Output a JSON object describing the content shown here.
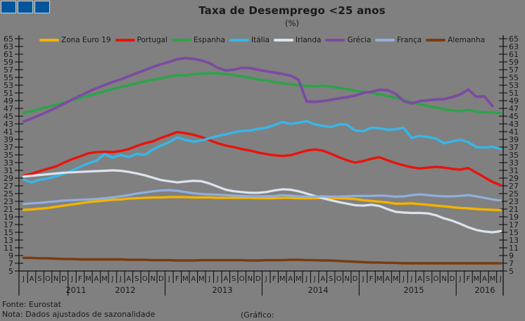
{
  "title": "Taxa de Desemprego <25 anos",
  "subtitle": "(%)",
  "footer": {
    "fonte": "Fonte: Eurostat",
    "nota": "Nota: Dados ajustados de sazonalidade",
    "grafico": "(Gráfico:"
  },
  "logo": {
    "color": "#01569B",
    "squares": 3
  },
  "colors": {
    "background": "#808080",
    "text": "#1a1a1a",
    "axis": "#111111"
  },
  "chart_data": {
    "type": "line",
    "title": "Taxa de Desemprego <25 anos",
    "subtitle": "(%)",
    "ylim": [
      5,
      65
    ],
    "ytick_step": 2,
    "grid": false,
    "legend_position": "top",
    "x_period": "Jul 2011 - Jun 2016, monthly",
    "x_months": [
      "J",
      "A",
      "S",
      "O",
      "N",
      "D",
      "J",
      "F",
      "M",
      "A",
      "M",
      "J",
      "J",
      "A",
      "S",
      "O",
      "N",
      "D",
      "J",
      "F",
      "M",
      "A",
      "M",
      "J",
      "J",
      "A",
      "S",
      "O",
      "N",
      "D",
      "J",
      "F",
      "M",
      "A",
      "M",
      "J",
      "J",
      "A",
      "S",
      "O",
      "N",
      "D",
      "J",
      "F",
      "M",
      "A",
      "M",
      "J",
      "J",
      "A",
      "S",
      "O",
      "N",
      "D",
      "J",
      "F",
      "M",
      "A",
      "M",
      "J"
    ],
    "x_years": [
      {
        "label": "2011",
        "months": 6
      },
      {
        "label": "2012",
        "months": 12
      },
      {
        "label": "2013",
        "months": 12
      },
      {
        "label": "2014",
        "months": 12
      },
      {
        "label": "2015",
        "months": 12
      },
      {
        "label": "2016",
        "months": 6
      }
    ],
    "series": [
      {
        "name": "Zona Euro 19",
        "color": "#F2B200",
        "width": 3.4,
        "values": [
          20.8,
          20.9,
          21.1,
          21.3,
          21.6,
          21.9,
          22.2,
          22.5,
          22.8,
          23.0,
          23.2,
          23.4,
          23.5,
          23.7,
          23.8,
          23.9,
          24.0,
          24.0,
          24.1,
          24.1,
          24.1,
          24.0,
          24.0,
          24.0,
          23.9,
          23.9,
          23.9,
          23.9,
          23.9,
          23.8,
          23.8,
          23.8,
          23.9,
          23.9,
          23.8,
          23.8,
          23.8,
          23.9,
          23.8,
          23.8,
          23.7,
          23.6,
          23.3,
          23.1,
          22.9,
          22.7,
          22.4,
          22.4,
          22.5,
          22.3,
          22.1,
          21.9,
          21.7,
          21.5,
          21.3,
          21.2,
          21.0,
          20.9,
          20.8,
          20.7
        ]
      },
      {
        "name": "Portugal",
        "color": "#E8130C",
        "width": 3.4,
        "values": [
          29.6,
          30.1,
          30.8,
          31.4,
          32.0,
          33.0,
          33.9,
          34.6,
          35.4,
          35.7,
          35.8,
          35.7,
          36.0,
          36.5,
          37.3,
          38.0,
          38.5,
          39.4,
          40.1,
          40.9,
          40.6,
          40.2,
          39.6,
          38.8,
          38.0,
          37.4,
          37.0,
          36.5,
          36.1,
          35.6,
          35.2,
          34.9,
          34.7,
          34.9,
          35.5,
          36.1,
          36.4,
          36.1,
          35.3,
          34.4,
          33.6,
          33.0,
          33.4,
          34.0,
          34.4,
          33.6,
          32.9,
          32.3,
          31.8,
          31.5,
          31.7,
          31.9,
          31.7,
          31.4,
          31.2,
          31.6,
          30.4,
          29.2,
          28.0,
          27.2
        ]
      },
      {
        "name": "Espanha",
        "color": "#2FA24A",
        "width": 3.6,
        "values": [
          45.9,
          46.3,
          46.8,
          47.4,
          48.0,
          48.5,
          49.1,
          49.7,
          50.3,
          50.8,
          51.4,
          52.0,
          52.5,
          53.0,
          53.5,
          54.0,
          54.4,
          54.8,
          55.2,
          55.6,
          55.5,
          55.8,
          56.0,
          56.1,
          56.1,
          55.9,
          55.6,
          55.3,
          54.9,
          54.5,
          54.2,
          53.8,
          53.5,
          53.2,
          53.0,
          52.8,
          52.7,
          52.9,
          52.6,
          52.3,
          52.0,
          51.6,
          51.3,
          51.0,
          50.6,
          50.2,
          49.8,
          49.2,
          48.6,
          48.1,
          47.6,
          47.2,
          46.8,
          46.5,
          46.3,
          46.6,
          46.2,
          46.0,
          45.9,
          45.8
        ]
      },
      {
        "name": "Itália",
        "color": "#38B6E8",
        "width": 3.4,
        "values": [
          28.6,
          27.9,
          28.6,
          28.9,
          29.5,
          30.1,
          31.0,
          31.9,
          32.8,
          33.5,
          35.2,
          34.3,
          35.0,
          34.4,
          35.3,
          35.0,
          36.4,
          37.4,
          38.3,
          39.5,
          38.9,
          38.4,
          38.7,
          39.3,
          39.9,
          40.3,
          40.8,
          41.2,
          41.3,
          41.7,
          42.0,
          42.7,
          43.5,
          43.0,
          43.3,
          43.7,
          42.9,
          42.5,
          42.2,
          42.9,
          42.8,
          41.3,
          41.1,
          42.0,
          41.9,
          41.5,
          41.6,
          42.0,
          39.4,
          39.9,
          39.6,
          39.2,
          38.0,
          38.5,
          38.9,
          38.3,
          37.0,
          36.9,
          37.1,
          36.5
        ]
      },
      {
        "name": "Irlanda",
        "color": "#DCE3EF",
        "width": 3.2,
        "values": [
          29.4,
          29.6,
          29.8,
          30.0,
          30.2,
          30.4,
          30.5,
          30.6,
          30.7,
          30.8,
          30.9,
          31.0,
          30.9,
          30.6,
          30.2,
          29.7,
          29.1,
          28.5,
          28.2,
          27.9,
          28.1,
          28.3,
          28.2,
          27.6,
          26.8,
          26.0,
          25.6,
          25.4,
          25.2,
          25.2,
          25.4,
          25.8,
          26.1,
          26.0,
          25.6,
          25.0,
          24.4,
          23.8,
          23.3,
          22.8,
          22.4,
          22.0,
          21.9,
          22.1,
          21.8,
          21.0,
          20.3,
          20.1,
          20.0,
          20.0,
          19.9,
          19.4,
          18.6,
          18.0,
          17.2,
          16.3,
          15.6,
          15.2,
          15.0,
          15.3
        ]
      },
      {
        "name": "Grécia",
        "color": "#7B4BA2",
        "width": 3.7,
        "values": [
          43.6,
          44.4,
          45.3,
          46.2,
          47.2,
          48.2,
          49.3,
          50.3,
          51.3,
          52.2,
          53.0,
          53.8,
          54.5,
          55.3,
          56.1,
          56.9,
          57.7,
          58.4,
          59.0,
          59.7,
          60.0,
          59.8,
          59.4,
          58.7,
          57.5,
          56.8,
          57.0,
          57.5,
          57.4,
          57.0,
          56.6,
          56.3,
          55.9,
          55.5,
          54.4,
          48.8,
          48.7,
          48.9,
          49.2,
          49.6,
          49.9,
          50.3,
          51.0,
          51.3,
          51.8,
          51.7,
          50.8,
          48.9,
          48.3,
          48.9,
          49.1,
          49.3,
          49.4,
          49.9,
          50.6,
          51.9,
          50.0,
          50.1,
          47.6,
          null
        ]
      },
      {
        "name": "França",
        "color": "#8FAFDE",
        "width": 3.2,
        "values": [
          22.3,
          22.5,
          22.6,
          22.8,
          23.0,
          23.2,
          23.3,
          23.4,
          23.5,
          23.6,
          23.8,
          24.0,
          24.3,
          24.6,
          25.0,
          25.3,
          25.6,
          25.8,
          25.9,
          25.7,
          25.4,
          25.1,
          24.9,
          24.8,
          24.7,
          24.6,
          24.5,
          24.4,
          24.3,
          24.3,
          24.3,
          24.4,
          24.6,
          24.5,
          24.3,
          24.2,
          24.2,
          24.3,
          24.2,
          24.2,
          24.3,
          24.4,
          24.4,
          24.4,
          24.5,
          24.4,
          24.2,
          24.3,
          24.6,
          24.8,
          24.6,
          24.4,
          24.3,
          24.3,
          24.4,
          24.6,
          24.3,
          23.9,
          23.5,
          23.2
        ]
      },
      {
        "name": "Alemanha",
        "color": "#7A3B0E",
        "width": 3.4,
        "values": [
          8.4,
          8.4,
          8.3,
          8.3,
          8.2,
          8.1,
          8.1,
          8.0,
          8.0,
          8.0,
          8.0,
          8.0,
          8.0,
          7.9,
          7.9,
          7.9,
          7.8,
          7.8,
          7.8,
          7.7,
          7.7,
          7.7,
          7.8,
          7.8,
          7.8,
          7.8,
          7.8,
          7.8,
          7.7,
          7.7,
          7.8,
          7.8,
          7.8,
          7.9,
          7.9,
          7.8,
          7.8,
          7.7,
          7.7,
          7.6,
          7.5,
          7.4,
          7.3,
          7.2,
          7.2,
          7.1,
          7.1,
          7.0,
          7.0,
          7.0,
          7.0,
          7.0,
          7.0,
          7.0,
          7.0,
          7.0,
          7.0,
          7.0,
          7.0,
          7.0
        ]
      }
    ]
  }
}
